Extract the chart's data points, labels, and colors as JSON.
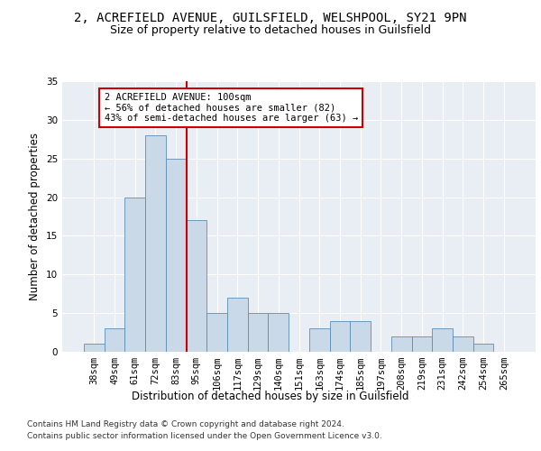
{
  "title_line1": "2, ACREFIELD AVENUE, GUILSFIELD, WELSHPOOL, SY21 9PN",
  "title_line2": "Size of property relative to detached houses in Guilsfield",
  "xlabel": "Distribution of detached houses by size in Guilsfield",
  "ylabel": "Number of detached properties",
  "categories": [
    "38sqm",
    "49sqm",
    "61sqm",
    "72sqm",
    "83sqm",
    "95sqm",
    "106sqm",
    "117sqm",
    "129sqm",
    "140sqm",
    "151sqm",
    "163sqm",
    "174sqm",
    "185sqm",
    "197sqm",
    "208sqm",
    "219sqm",
    "231sqm",
    "242sqm",
    "254sqm",
    "265sqm"
  ],
  "values": [
    1,
    3,
    20,
    28,
    25,
    17,
    5,
    7,
    5,
    5,
    0,
    3,
    4,
    4,
    0,
    2,
    2,
    3,
    2,
    1,
    0
  ],
  "bar_color": "#c9d9e8",
  "bar_edge_color": "#5a8db5",
  "ylim": [
    0,
    35
  ],
  "yticks": [
    0,
    5,
    10,
    15,
    20,
    25,
    30,
    35
  ],
  "annotation_text": "2 ACREFIELD AVENUE: 100sqm\n← 56% of detached houses are smaller (82)\n43% of semi-detached houses are larger (63) →",
  "annotation_box_color": "#ffffff",
  "annotation_box_edge": "#cc0000",
  "red_line_color": "#cc0000",
  "footer_line1": "Contains HM Land Registry data © Crown copyright and database right 2024.",
  "footer_line2": "Contains public sector information licensed under the Open Government Licence v3.0.",
  "bg_color": "#e8eef4",
  "grid_color": "#ffffff",
  "title_fontsize": 10,
  "subtitle_fontsize": 9,
  "axis_label_fontsize": 8.5,
  "tick_fontsize": 7.5,
  "annotation_fontsize": 7.5,
  "footer_fontsize": 6.5
}
